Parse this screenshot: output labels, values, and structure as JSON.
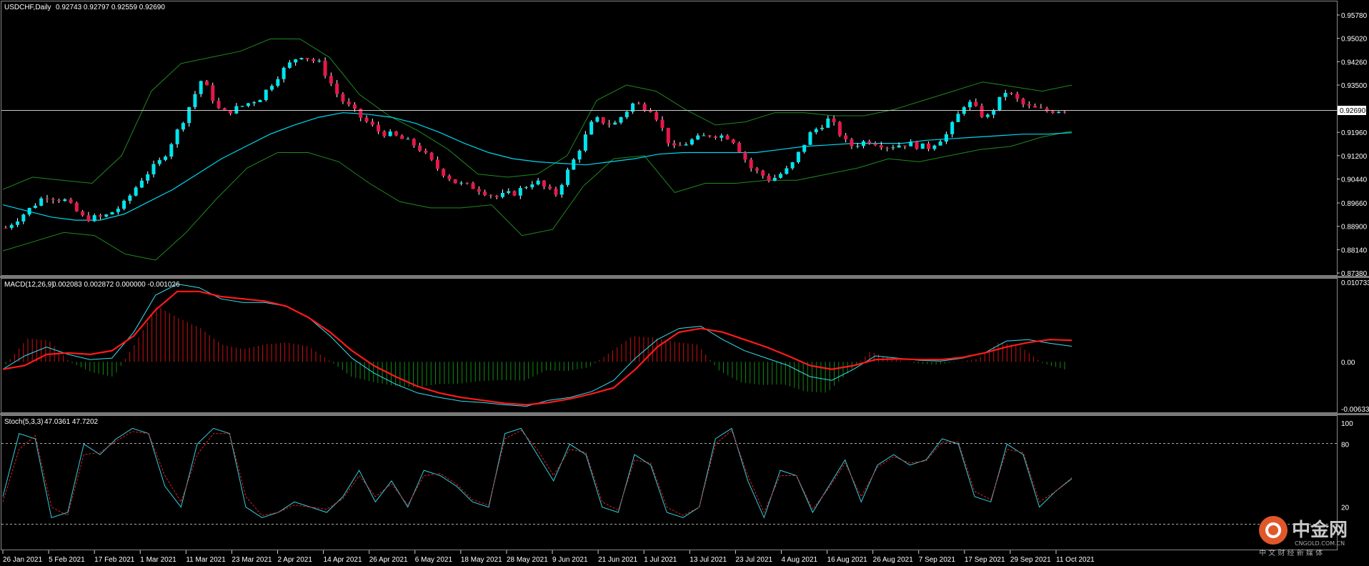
{
  "colors": {
    "background": "#000000",
    "bull_candle": "#00e5ee",
    "bear_candle": "#e8174a",
    "ma": "#00d8f0",
    "bollinger": "#1f8a1f",
    "macd_signal": "#ff1a1a",
    "macd_line": "#33e0f0",
    "macd_hist_pos": "#cc1111",
    "macd_hist_neg": "#128a12",
    "stoch_main": "#33d0e0",
    "stoch_signal": "#e02020",
    "grid": "#ffffff"
  },
  "header": {
    "symbol": "USDCHF,Daily",
    "ohlc": "0.92743 0.92797 0.92559 0.92690",
    "current_price": "0.92690"
  },
  "macd_header": {
    "name": "MACD(12,26,9)",
    "values": "0.002083 0.002872 0.000000 -0.001026"
  },
  "stoch_header": {
    "name": "Stoch(5,3,3)",
    "values": "47.0361 47.7202"
  },
  "watermark": {
    "brand": "中金网",
    "domain": "CNGOLD.COM.CN",
    "slogan": "中 文 财 经 新 媒 体"
  },
  "chart_data": [
    {
      "type": "candlestick",
      "title": "USDCHF,Daily",
      "symbol": "USDCHF",
      "timeframe": "Daily",
      "last_ohlc": {
        "open": 0.92743,
        "high": 0.92797,
        "low": 0.92559,
        "close": 0.9269
      },
      "y_ticks": [
        0.9578,
        0.9502,
        0.9426,
        0.935,
        0.9196,
        0.912,
        0.9044,
        0.8966,
        0.889,
        0.8814,
        0.8738
      ],
      "ylim": [
        0.8738,
        0.961
      ],
      "x_ticks": [
        "26 Jan 2021",
        "5 Feb 2021",
        "17 Feb 2021",
        "1 Mar 2021",
        "11 Mar 2021",
        "23 Mar 2021",
        "2 Apr 2021",
        "14 Apr 2021",
        "26 Apr 2021",
        "6 May 2021",
        "18 May 2021",
        "28 May 2021",
        "9 Jun 2021",
        "21 Jun 2021",
        "1 Jul 2021",
        "13 Jul 2021",
        "23 Jul 2021",
        "4 Aug 2021",
        "16 Aug 2021",
        "26 Aug 2021",
        "7 Sep 2021",
        "17 Sep 2021",
        "29 Sep 2021",
        "11 Oct 2021"
      ],
      "close_path": [
        0.8885,
        0.8935,
        0.899,
        0.8975,
        0.8915,
        0.892,
        0.896,
        0.905,
        0.911,
        0.923,
        0.937,
        0.9255,
        0.928,
        0.931,
        0.939,
        0.945,
        0.942,
        0.931,
        0.925,
        0.92,
        0.918,
        0.915,
        0.908,
        0.903,
        0.9015,
        0.8985,
        0.9,
        0.904,
        0.899,
        0.911,
        0.924,
        0.922,
        0.929,
        0.927,
        0.914,
        0.917,
        0.919,
        0.918,
        0.908,
        0.904,
        0.908,
        0.919,
        0.924,
        0.915,
        0.917,
        0.915,
        0.916,
        0.9145,
        0.919,
        0.93,
        0.924,
        0.933,
        0.928,
        0.9265,
        0.927
      ],
      "moving_average_path": [
        0.896,
        0.894,
        0.892,
        0.891,
        0.891,
        0.893,
        0.897,
        0.901,
        0.906,
        0.911,
        0.915,
        0.919,
        0.922,
        0.9245,
        0.926,
        0.9255,
        0.9245,
        0.9225,
        0.9195,
        0.916,
        0.913,
        0.911,
        0.91,
        0.9095,
        0.909,
        0.91,
        0.911,
        0.9125,
        0.913,
        0.913,
        0.913,
        0.913,
        0.914,
        0.915,
        0.9155,
        0.916,
        0.916,
        0.916,
        0.917,
        0.9175,
        0.918,
        0.9185,
        0.919,
        0.919,
        0.9195
      ],
      "bollinger_upper_path": [
        0.901,
        0.905,
        0.904,
        0.903,
        0.912,
        0.933,
        0.942,
        0.944,
        0.946,
        0.95,
        0.95,
        0.944,
        0.932,
        0.925,
        0.92,
        0.914,
        0.906,
        0.905,
        0.906,
        0.912,
        0.93,
        0.935,
        0.933,
        0.927,
        0.922,
        0.923,
        0.926,
        0.926,
        0.925,
        0.925,
        0.927,
        0.93,
        0.933,
        0.936,
        0.9345,
        0.933,
        0.935
      ],
      "bollinger_lower_path": [
        0.881,
        0.884,
        0.887,
        0.886,
        0.88,
        0.878,
        0.887,
        0.898,
        0.908,
        0.913,
        0.913,
        0.91,
        0.903,
        0.897,
        0.895,
        0.895,
        0.896,
        0.886,
        0.888,
        0.902,
        0.911,
        0.912,
        0.9,
        0.903,
        0.903,
        0.904,
        0.904,
        0.906,
        0.908,
        0.911,
        0.91,
        0.912,
        0.914,
        0.915,
        0.918,
        0.92
      ]
    },
    {
      "type": "line",
      "title": "MACD(12,26,9)",
      "values": [
        0.002083,
        0.002872,
        0.0,
        -0.001026
      ],
      "y_ticks": [
        0.010733,
        0.0,
        -0.006337
      ],
      "ylim": [
        -0.006337,
        0.010733
      ],
      "series": [
        {
          "name": "MACD",
          "values": [
            -0.001,
            0.0008,
            0.002,
            0.001,
            0.0003,
            0.0005,
            0.004,
            0.009,
            0.0105,
            0.01,
            0.0085,
            0.008,
            0.008,
            0.0075,
            0.006,
            0.0035,
            0.0005,
            -0.0015,
            -0.003,
            -0.0042,
            -0.0048,
            -0.0053,
            -0.0055,
            -0.0058,
            -0.006,
            -0.0052,
            -0.0048,
            -0.004,
            -0.0025,
            0.0005,
            0.003,
            0.0045,
            0.0048,
            0.003,
            0.0015,
            0.0005,
            -0.0005,
            -0.002,
            -0.0025,
            -0.001,
            0.0008,
            0.0005,
            0.0002,
            0.0001,
            0.0005,
            0.0012,
            0.0028,
            0.003,
            0.0025,
            0.0021
          ]
        },
        {
          "name": "Signal",
          "values": [
            -0.001,
            -0.0005,
            0.001,
            0.0012,
            0.001,
            0.0015,
            0.0035,
            0.007,
            0.0095,
            0.0095,
            0.0088,
            0.0085,
            0.0082,
            0.0075,
            0.006,
            0.004,
            0.0015,
            -0.0005,
            -0.002,
            -0.0033,
            -0.0042,
            -0.0048,
            -0.0052,
            -0.0056,
            -0.0058,
            -0.0055,
            -0.005,
            -0.0043,
            -0.0035,
            -0.001,
            0.002,
            0.004,
            0.0045,
            0.004,
            0.003,
            0.002,
            0.0008,
            -0.0005,
            -0.001,
            -0.0005,
            0.0003,
            0.0004,
            0.0003,
            0.0003,
            0.0006,
            0.0012,
            0.002,
            0.0026,
            0.003,
            0.0029
          ]
        }
      ]
    },
    {
      "type": "line",
      "title": "Stoch(5,3,3)",
      "values": [
        47.0361,
        47.7202
      ],
      "y_ticks": [
        100,
        80,
        20
      ],
      "ylim": [
        0,
        100
      ],
      "levels": [
        80,
        20
      ],
      "series": [
        {
          "name": "Main",
          "values": [
            30,
            90,
            85,
            10,
            15,
            80,
            70,
            85,
            95,
            90,
            40,
            20,
            80,
            95,
            90,
            20,
            10,
            15,
            25,
            20,
            15,
            30,
            55,
            25,
            45,
            20,
            55,
            50,
            40,
            25,
            20,
            90,
            95,
            70,
            45,
            80,
            70,
            20,
            15,
            70,
            60,
            15,
            10,
            20,
            85,
            95,
            45,
            10,
            55,
            50,
            15,
            40,
            65,
            25,
            60,
            70,
            60,
            65,
            85,
            80,
            30,
            25,
            80,
            70,
            20,
            35,
            47
          ]
        },
        {
          "name": "Signal",
          "values": [
            25,
            75,
            88,
            20,
            12,
            70,
            72,
            83,
            92,
            90,
            50,
            25,
            70,
            90,
            90,
            30,
            12,
            15,
            22,
            20,
            18,
            28,
            50,
            30,
            42,
            22,
            50,
            52,
            42,
            27,
            22,
            85,
            93,
            75,
            50,
            75,
            72,
            25,
            17,
            65,
            62,
            20,
            12,
            20,
            80,
            93,
            50,
            15,
            50,
            50,
            18,
            38,
            62,
            30,
            58,
            68,
            62,
            64,
            82,
            82,
            35,
            27,
            75,
            72,
            25,
            35,
            48
          ]
        }
      ]
    }
  ]
}
